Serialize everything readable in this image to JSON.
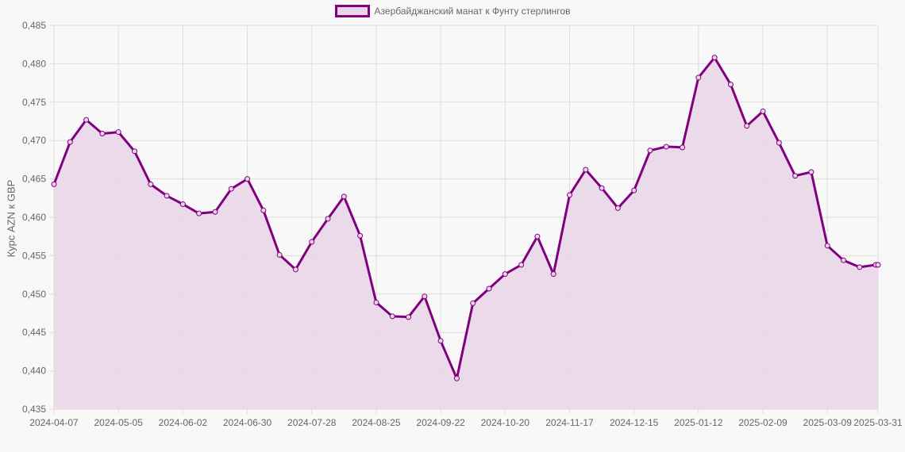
{
  "chart_data": {
    "type": "line",
    "title": "",
    "legend": [
      "Азербайджанский манат к Фунту стерлингов"
    ],
    "legend_position": "top",
    "xlabel": "",
    "ylabel": "Курс AZN к GBP",
    "ylim": [
      0.435,
      0.485
    ],
    "y_ticks": [
      "0,485",
      "0,480",
      "0,475",
      "0,470",
      "0,465",
      "0,460",
      "0,455",
      "0,450",
      "0,445",
      "0,440",
      "0,435"
    ],
    "x_ticks": [
      "2024-04-07",
      "2024-05-05",
      "2024-06-02",
      "2024-06-30",
      "2024-07-28",
      "2024-08-25",
      "2024-09-22",
      "2024-10-20",
      "2024-11-17",
      "2024-12-15",
      "2025-01-12",
      "2025-02-09",
      "2025-03-09",
      "2025-03-31"
    ],
    "grid": true,
    "fill": true,
    "colors": {
      "line": "#800080",
      "fill": "#e8d5e8",
      "grid": "#dddddd"
    },
    "x": [
      "2024-04-07",
      "2024-04-14",
      "2024-04-21",
      "2024-04-28",
      "2024-05-05",
      "2024-05-12",
      "2024-05-19",
      "2024-05-26",
      "2024-06-02",
      "2024-06-09",
      "2024-06-16",
      "2024-06-23",
      "2024-06-30",
      "2024-07-07",
      "2024-07-14",
      "2024-07-21",
      "2024-07-28",
      "2024-08-04",
      "2024-08-11",
      "2024-08-18",
      "2024-08-25",
      "2024-09-01",
      "2024-09-08",
      "2024-09-15",
      "2024-09-22",
      "2024-09-29",
      "2024-10-06",
      "2024-10-13",
      "2024-10-20",
      "2024-10-27",
      "2024-11-03",
      "2024-11-10",
      "2024-11-17",
      "2024-11-24",
      "2024-12-01",
      "2024-12-08",
      "2024-12-15",
      "2024-12-22",
      "2024-12-29",
      "2025-01-05",
      "2025-01-12",
      "2025-01-19",
      "2025-01-26",
      "2025-02-02",
      "2025-02-09",
      "2025-02-16",
      "2025-02-23",
      "2025-03-02",
      "2025-03-09",
      "2025-03-16",
      "2025-03-23",
      "2025-03-30",
      "2025-03-31"
    ],
    "series": [
      {
        "name": "Азербайджанский манат к Фунту стерлингов",
        "values": [
          0.4643,
          0.4698,
          0.4727,
          0.4709,
          0.4711,
          0.4686,
          0.4643,
          0.4628,
          0.4617,
          0.4605,
          0.4607,
          0.4637,
          0.465,
          0.4609,
          0.4551,
          0.4532,
          0.4568,
          0.4598,
          0.4627,
          0.4576,
          0.4489,
          0.4471,
          0.447,
          0.4497,
          0.4439,
          0.439,
          0.4488,
          0.4507,
          0.4526,
          0.4538,
          0.4575,
          0.4526,
          0.4629,
          0.4662,
          0.4638,
          0.4612,
          0.4635,
          0.4687,
          0.4692,
          0.4691,
          0.4782,
          0.4808,
          0.4773,
          0.4719,
          0.4738,
          0.4697,
          0.4654,
          0.4659,
          0.4563,
          0.4544,
          0.4535,
          0.4538,
          0.4538
        ]
      }
    ]
  }
}
